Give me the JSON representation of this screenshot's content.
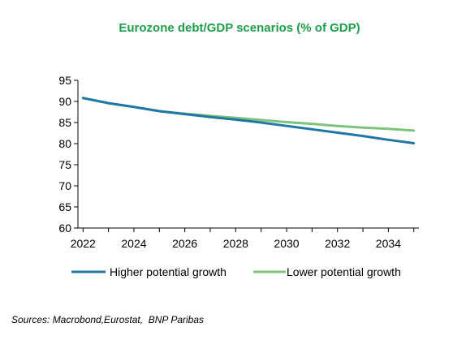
{
  "chart_data": {
    "type": "line",
    "title": "Eurozone debt/GDP scenarios (% of GDP)",
    "xlabel": "",
    "ylabel": "",
    "xlim": [
      2021.8,
      2035.2
    ],
    "ylim": [
      60,
      95
    ],
    "x_ticks": [
      "2022",
      "2024",
      "2026",
      "2028",
      "2030",
      "2032",
      "2034"
    ],
    "y_ticks": [
      "95",
      "90",
      "85",
      "80",
      "75",
      "70",
      "65",
      "60"
    ],
    "grid": false,
    "legend_position": "bottom",
    "series": [
      {
        "name": "Higher potential growth",
        "color": "#1f77a8",
        "x": [
          2022,
          2023,
          2024,
          2025,
          2026,
          2027,
          2028,
          2029,
          2030,
          2031,
          2032,
          2033,
          2034,
          2035
        ],
        "values": [
          90.8,
          89.6,
          88.7,
          87.7,
          87.0,
          86.3,
          85.7,
          85.0,
          84.2,
          83.4,
          82.6,
          81.8,
          80.9,
          80.1
        ]
      },
      {
        "name": "Lower potential growth",
        "color": "#7dc47a",
        "x": [
          2022,
          2023,
          2024,
          2025,
          2026,
          2027,
          2028,
          2029,
          2030,
          2031,
          2032,
          2033,
          2034,
          2035
        ],
        "values": [
          90.8,
          89.6,
          88.7,
          87.7,
          87.1,
          86.6,
          86.1,
          85.6,
          85.1,
          84.7,
          84.2,
          83.8,
          83.5,
          83.1
        ]
      }
    ]
  },
  "title_color": "#1e9e4a",
  "source": "Sources: Macrobond,Eurostat,  BNP Paribas"
}
